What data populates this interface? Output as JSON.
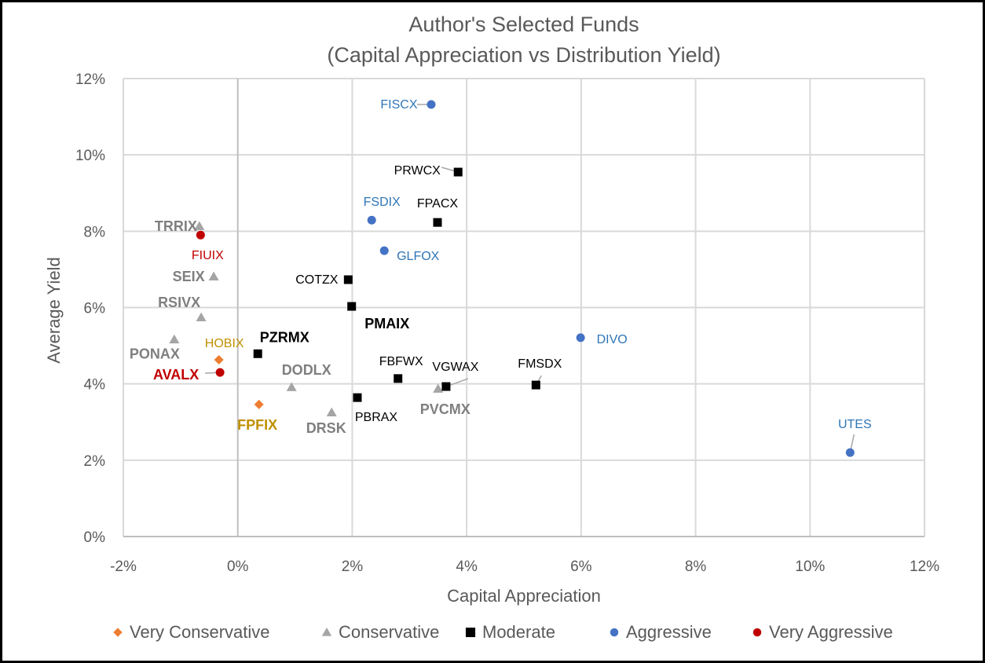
{
  "chart_data": {
    "type": "scatter",
    "title": "Author's Selected Funds",
    "subtitle": "(Capital Appreciation vs Distribution Yield)",
    "xlabel": "Capital Appreciation",
    "ylabel": "Average Yield",
    "xlim": [
      -2,
      12
    ],
    "ylim": [
      0,
      12
    ],
    "x_ticks": [
      -2,
      0,
      2,
      4,
      6,
      8,
      10,
      12
    ],
    "y_ticks": [
      0,
      2,
      4,
      6,
      8,
      10,
      12
    ],
    "x_tick_labels": [
      "-2%",
      "0%",
      "2%",
      "4%",
      "6%",
      "8%",
      "10%",
      "12%"
    ],
    "y_tick_labels": [
      "0%",
      "2%",
      "4%",
      "6%",
      "8%",
      "10%",
      "12%"
    ],
    "grid": true,
    "legend_position": "bottom",
    "series": [
      {
        "name": "Very Conservative",
        "marker": "diamond",
        "color": "#ED7D31",
        "label_color": "#BF9000",
        "points": [
          {
            "label": "HOBIX",
            "x": -0.33,
            "y": 4.63,
            "bold": false
          },
          {
            "label": "FPFIX",
            "x": 0.37,
            "y": 3.46,
            "bold": true
          }
        ]
      },
      {
        "name": "Conservative",
        "marker": "triangle",
        "color": "#A5A5A5",
        "label_color": "#7F7F7F",
        "points": [
          {
            "label": "TRRIX",
            "x": -0.67,
            "y": 8.13,
            "bold": true
          },
          {
            "label": "SEIX",
            "x": -0.42,
            "y": 6.81,
            "bold": true
          },
          {
            "label": "RSIVX",
            "x": -0.64,
            "y": 5.74,
            "bold": true
          },
          {
            "label": "PONAX",
            "x": -1.11,
            "y": 5.16,
            "bold": true
          },
          {
            "label": "DODLX",
            "x": 0.94,
            "y": 3.91,
            "bold": true
          },
          {
            "label": "DRSK",
            "x": 1.64,
            "y": 3.25,
            "bold": true
          },
          {
            "label": "PVCMX",
            "x": 3.5,
            "y": 3.87,
            "bold": true
          }
        ]
      },
      {
        "name": "Moderate",
        "marker": "square",
        "color": "#000000",
        "label_color": "#000000",
        "points": [
          {
            "label": "PRWCX",
            "x": 3.85,
            "y": 9.55,
            "bold": false
          },
          {
            "label": "FPACX",
            "x": 3.49,
            "y": 8.23,
            "bold": false
          },
          {
            "label": "COTZX",
            "x": 1.93,
            "y": 6.73,
            "bold": false
          },
          {
            "label": "PMAIX",
            "x": 1.99,
            "y": 6.03,
            "bold": true
          },
          {
            "label": "PZRMX",
            "x": 0.35,
            "y": 4.79,
            "bold": true
          },
          {
            "label": "FBFWX",
            "x": 2.8,
            "y": 4.14,
            "bold": false
          },
          {
            "label": "VGWAX",
            "x": 3.64,
            "y": 3.93,
            "bold": false
          },
          {
            "label": "FMSDX",
            "x": 5.21,
            "y": 3.97,
            "bold": false
          },
          {
            "label": "PBRAX",
            "x": 2.09,
            "y": 3.64,
            "bold": false
          }
        ]
      },
      {
        "name": "Aggressive",
        "marker": "circle",
        "color": "#4472C4",
        "label_color": "#2E75B6",
        "points": [
          {
            "label": "FISCX",
            "x": 3.38,
            "y": 11.32,
            "bold": false
          },
          {
            "label": "FSDIX",
            "x": 2.34,
            "y": 8.29,
            "bold": false
          },
          {
            "label": "GLFOX",
            "x": 2.56,
            "y": 7.49,
            "bold": false
          },
          {
            "label": "DIVO",
            "x": 5.99,
            "y": 5.21,
            "bold": false
          },
          {
            "label": "UTES",
            "x": 10.7,
            "y": 2.2,
            "bold": false
          }
        ]
      },
      {
        "name": "Very Aggressive",
        "marker": "circle",
        "color": "#C00000",
        "label_color": "#C00000",
        "points": [
          {
            "label": "FIUIX",
            "x": -0.65,
            "y": 7.9,
            "bold": false
          },
          {
            "label": "AVALX",
            "x": -0.31,
            "y": 4.3,
            "bold": true
          }
        ]
      }
    ]
  }
}
